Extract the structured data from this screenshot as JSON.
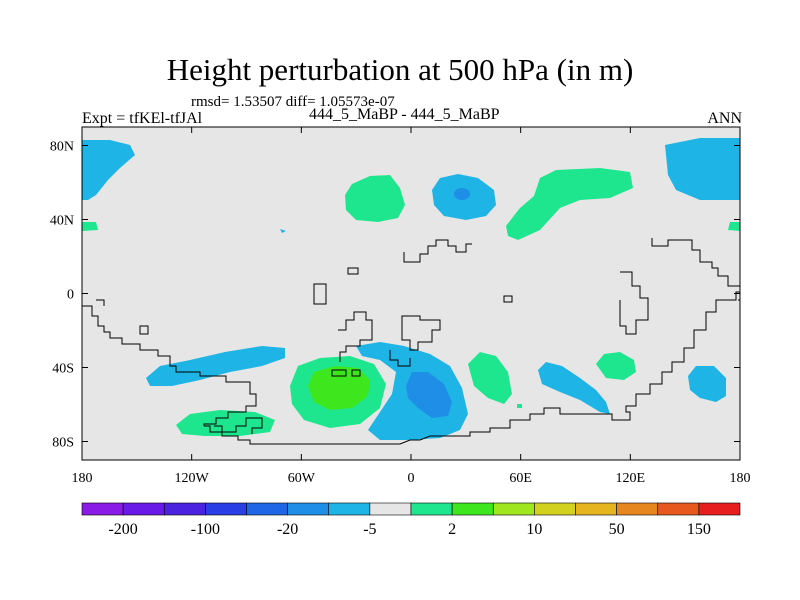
{
  "title": "Height perturbation at 500 hPa (in m)",
  "stats": "rmsd= 1.53507 diff= 1.05573e-07",
  "left_label": "Expt = tfKEl-tfJAl",
  "center_label": "444_5_MaBP - 444_5_MaBP",
  "right_label": "ANN",
  "axes": {
    "x_ticks": [
      {
        "value": 180,
        "label": "180"
      },
      {
        "value": -120,
        "label": "120W"
      },
      {
        "value": -60,
        "label": "60W"
      },
      {
        "value": 0,
        "label": "0"
      },
      {
        "value": 60,
        "label": "60E"
      },
      {
        "value": 120,
        "label": "120E"
      },
      {
        "value": 180,
        "label": "180"
      }
    ],
    "y_ticks": [
      {
        "value": 80,
        "label": "80N"
      },
      {
        "value": 40,
        "label": "40N"
      },
      {
        "value": 0,
        "label": "0"
      },
      {
        "value": -40,
        "label": "40S"
      },
      {
        "value": -80,
        "label": "80S"
      }
    ]
  },
  "colorbar": {
    "colors": [
      "#8a1ae6",
      "#6a1ae6",
      "#4a22e0",
      "#2a3ee6",
      "#1e66e6",
      "#1e8ee6",
      "#1eb4e6",
      "#e6e6e6",
      "#1ee68e",
      "#3ee61e",
      "#a0e61e",
      "#d2d21e",
      "#e6b41e",
      "#e6861e",
      "#e6581e",
      "#e61e1e"
    ],
    "labels": [
      "-200",
      "-100",
      "-20",
      "-5",
      "2",
      "10",
      "50",
      "150"
    ]
  },
  "colors": {
    "background": "#e6e6e6",
    "positive_light": "#1ee68e",
    "positive_strong": "#3ee61e",
    "negative_light": "#1eb4e6",
    "negative_strong": "#1e8ee6"
  }
}
